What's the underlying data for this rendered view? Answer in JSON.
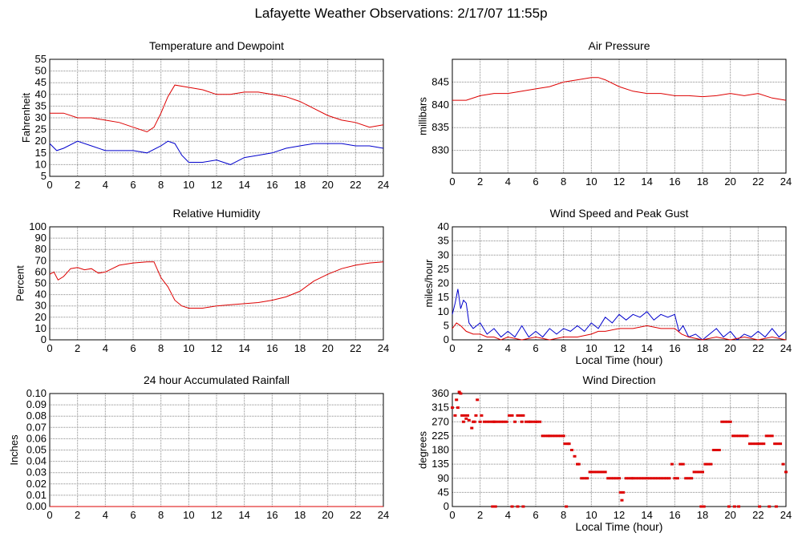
{
  "page_title": "Lafayette Weather Observations: 2/17/07 11:55p",
  "chart_data": [
    {
      "id": "temp",
      "type": "line",
      "title": "Temperature and Dewpoint",
      "xlabel": "",
      "ylabel": "Fahrenheit",
      "xlim": [
        0,
        24
      ],
      "ylim": [
        5,
        55
      ],
      "xticks": [
        "0",
        "2",
        "4",
        "6",
        "8",
        "10",
        "12",
        "14",
        "16",
        "18",
        "20",
        "22",
        "24"
      ],
      "yticks": [
        "5",
        "10",
        "15",
        "20",
        "25",
        "30",
        "35",
        "40",
        "45",
        "50",
        "55"
      ],
      "series": [
        {
          "color": "#dd0000",
          "x": [
            0,
            1,
            2,
            3,
            4,
            5,
            6,
            7,
            7.5,
            8,
            8.5,
            9,
            10,
            11,
            12,
            13,
            14,
            15,
            16,
            17,
            18,
            19,
            20,
            21,
            22,
            23,
            24
          ],
          "y": [
            32,
            32,
            30,
            30,
            29,
            28,
            26,
            24,
            26,
            32,
            39,
            44,
            43,
            42,
            40,
            40,
            41,
            41,
            40,
            39,
            37,
            34,
            31,
            29,
            28,
            26,
            27
          ]
        },
        {
          "color": "#0000cc",
          "x": [
            0,
            0.5,
            1,
            2,
            3,
            4,
            5,
            6,
            7,
            8,
            8.5,
            9,
            9.5,
            10,
            11,
            12,
            13,
            14,
            15,
            16,
            17,
            18,
            19,
            20,
            21,
            22,
            23,
            24
          ],
          "y": [
            19,
            16,
            17,
            20,
            18,
            16,
            16,
            16,
            15,
            18,
            20,
            19,
            14,
            11,
            11,
            12,
            10,
            13,
            14,
            15,
            17,
            18,
            19,
            19,
            19,
            18,
            18,
            17
          ]
        }
      ]
    },
    {
      "id": "pressure",
      "type": "line",
      "title": "Air Pressure",
      "xlabel": "",
      "ylabel": "millibars",
      "xlim": [
        0,
        24
      ],
      "ylim": [
        825,
        850
      ],
      "xticks": [
        "0",
        "2",
        "4",
        "6",
        "8",
        "10",
        "12",
        "14",
        "16",
        "18",
        "20",
        "22",
        "24"
      ],
      "yticks": [
        "830",
        "835",
        "840",
        "845"
      ],
      "series": [
        {
          "color": "#dd0000",
          "x": [
            0,
            1,
            2,
            3,
            4,
            5,
            6,
            7,
            8,
            9,
            10,
            10.5,
            11,
            12,
            13,
            14,
            15,
            16,
            17,
            18,
            19,
            20,
            21,
            22,
            23,
            24
          ],
          "y": [
            841,
            841,
            842,
            842.5,
            842.5,
            843,
            843.5,
            844,
            845,
            845.5,
            846,
            846,
            845.5,
            844,
            843,
            842.5,
            842.5,
            842,
            842,
            841.8,
            842,
            842.5,
            842,
            842.5,
            841.5,
            841
          ]
        }
      ]
    },
    {
      "id": "humidity",
      "type": "line",
      "title": "Relative Humidity",
      "xlabel": "",
      "ylabel": "Percent",
      "xlim": [
        0,
        24
      ],
      "ylim": [
        0,
        100
      ],
      "xticks": [
        "0",
        "2",
        "4",
        "6",
        "8",
        "10",
        "12",
        "14",
        "16",
        "18",
        "20",
        "22",
        "24"
      ],
      "yticks": [
        "0",
        "10",
        "20",
        "30",
        "40",
        "50",
        "60",
        "70",
        "80",
        "90",
        "100"
      ],
      "series": [
        {
          "color": "#dd0000",
          "x": [
            0,
            0.3,
            0.6,
            1,
            1.5,
            2,
            2.5,
            3,
            3.5,
            4,
            5,
            6,
            7,
            7.5,
            8,
            8.5,
            9,
            9.5,
            10,
            11,
            12,
            13,
            14,
            15,
            16,
            17,
            18,
            19,
            20,
            21,
            22,
            23,
            24
          ],
          "y": [
            58,
            60,
            53,
            56,
            63,
            64,
            62,
            63,
            59,
            60,
            66,
            68,
            69,
            69,
            55,
            47,
            35,
            30,
            28,
            28,
            30,
            31,
            32,
            33,
            35,
            38,
            43,
            52,
            58,
            63,
            66,
            68,
            69
          ]
        }
      ]
    },
    {
      "id": "wind",
      "type": "line",
      "title": "Wind Speed and Peak Gust",
      "xlabel": "Local Time (hour)",
      "ylabel": "miles/hour",
      "xlim": [
        0,
        24
      ],
      "ylim": [
        0,
        40
      ],
      "xticks": [
        "0",
        "2",
        "4",
        "6",
        "8",
        "10",
        "12",
        "14",
        "16",
        "18",
        "20",
        "22",
        "24"
      ],
      "yticks": [
        "0",
        "5",
        "10",
        "15",
        "20",
        "25",
        "30",
        "35",
        "40"
      ],
      "series": [
        {
          "color": "#0000cc",
          "x": [
            0,
            0.2,
            0.4,
            0.6,
            0.8,
            1,
            1.2,
            1.5,
            2,
            2.5,
            3,
            3.5,
            4,
            4.5,
            5,
            5.5,
            6,
            6.5,
            7,
            7.5,
            8,
            8.5,
            9,
            9.5,
            10,
            10.5,
            11,
            11.5,
            12,
            12.5,
            13,
            13.5,
            14,
            14.5,
            15,
            15.5,
            16,
            16.3,
            16.6,
            17,
            17.5,
            18,
            18.5,
            19,
            19.5,
            20,
            20.5,
            21,
            21.5,
            22,
            22.5,
            23,
            23.5,
            24
          ],
          "y": [
            9,
            13,
            18,
            11,
            14,
            13,
            6,
            4,
            6,
            2,
            4,
            1,
            3,
            1,
            5,
            1,
            3,
            1,
            4,
            2,
            4,
            3,
            5,
            3,
            6,
            4,
            8,
            6,
            9,
            7,
            9,
            8,
            10,
            7,
            9,
            8,
            9,
            3,
            5,
            1,
            2,
            0,
            2,
            4,
            1,
            3,
            0,
            2,
            1,
            3,
            1,
            4,
            1,
            3
          ]
        },
        {
          "color": "#dd0000",
          "x": [
            0,
            0.3,
            0.6,
            1,
            1.5,
            2,
            2.5,
            3,
            3.5,
            4,
            5,
            6,
            7,
            8,
            9,
            10,
            10.5,
            11,
            12,
            13,
            14,
            15,
            16,
            16.5,
            17,
            18,
            19,
            20,
            21,
            22,
            23,
            24
          ],
          "y": [
            4,
            6,
            5,
            3,
            2,
            2,
            1,
            1,
            0,
            1,
            0,
            1,
            0,
            1,
            1,
            2,
            3,
            3,
            4,
            4,
            5,
            4,
            4,
            2,
            1,
            0,
            1,
            0,
            1,
            0,
            1,
            0
          ]
        }
      ]
    },
    {
      "id": "rain",
      "type": "line",
      "title": "24 hour Accumulated Rainfall",
      "xlabel": "",
      "ylabel": "Inches",
      "xlim": [
        0,
        24
      ],
      "ylim": [
        0,
        0.1
      ],
      "xticks": [
        "0",
        "2",
        "4",
        "6",
        "8",
        "10",
        "12",
        "14",
        "16",
        "18",
        "20",
        "22",
        "24"
      ],
      "yticks": [
        "0.00",
        "0.01",
        "0.02",
        "0.03",
        "0.04",
        "0.05",
        "0.06",
        "0.07",
        "0.08",
        "0.09",
        "0.10"
      ],
      "series": [
        {
          "color": "#dd0000",
          "x": [
            0,
            24
          ],
          "y": [
            0,
            0
          ]
        }
      ]
    },
    {
      "id": "direction",
      "type": "scatter",
      "title": "Wind Direction",
      "xlabel": "Local Time (hour)",
      "ylabel": "degrees",
      "xlim": [
        0,
        24
      ],
      "ylim": [
        0,
        360
      ],
      "xticks": [
        "0",
        "2",
        "4",
        "6",
        "8",
        "10",
        "12",
        "14",
        "16",
        "18",
        "20",
        "22",
        "24"
      ],
      "yticks": [
        "0",
        "45",
        "90",
        "135",
        "180",
        "225",
        "270",
        "315",
        "360"
      ],
      "series": [
        {
          "color": "#dd0000",
          "x": [
            0,
            0.2,
            0.3,
            0.4,
            0.5,
            0.6,
            0.7,
            0.8,
            0.9,
            1,
            1.1,
            1.2,
            1.4,
            1.5,
            1.6,
            1.7,
            1.8,
            2,
            2.1,
            2.3,
            2.5,
            2.7,
            2.9,
            3,
            3.1,
            3.3,
            3.5,
            3.7,
            3.9,
            4.1,
            4.3,
            4.5,
            4.7,
            4.9,
            5,
            5.1,
            5.3,
            5.5,
            5.6,
            5.8,
            6,
            6.1,
            6.3,
            6.5,
            6.7,
            6.9,
            7,
            7.2,
            7.4,
            7.6,
            7.8,
            8,
            8.1,
            8.3,
            8.4,
            8.6,
            8.8,
            9,
            9.1,
            9.3,
            9.5,
            9.7,
            9.9,
            10,
            10.2,
            10.4,
            10.6,
            10.8,
            11,
            11.2,
            11.4,
            11.6,
            11.8,
            12,
            12.1,
            12.2,
            12.3,
            12.5,
            12.7,
            12.9,
            13,
            13.2,
            13.4,
            13.6,
            13.8,
            14,
            14.2,
            14.4,
            14.6,
            14.8,
            15,
            15.2,
            15.4,
            15.6,
            15.8,
            16,
            16.2,
            16.4,
            16.6,
            16.8,
            17,
            17.2,
            17.4,
            17.6,
            17.8,
            18,
            18.2,
            18.4,
            18.6,
            18.8,
            19,
            19.2,
            19.4,
            19.6,
            19.8,
            20,
            20.2,
            20.4,
            20.6,
            20.8,
            21,
            21.2,
            21.4,
            21.6,
            21.8,
            22,
            22.2,
            22.4,
            22.6,
            22.8,
            23,
            23.2,
            23.4,
            23.6,
            23.8,
            24,
            2.9,
            3.1,
            4.3,
            4.7,
            5.1,
            8.2,
            17.9,
            18.1,
            19.9,
            20.3,
            20.6,
            22.1,
            22.8,
            23.3
          ],
          "y": [
            315,
            290,
            340,
            315,
            365,
            360,
            290,
            270,
            290,
            280,
            290,
            275,
            250,
            270,
            270,
            290,
            340,
            270,
            290,
            270,
            270,
            270,
            270,
            270,
            270,
            270,
            270,
            270,
            270,
            290,
            290,
            270,
            290,
            290,
            270,
            290,
            270,
            270,
            270,
            270,
            270,
            270,
            270,
            225,
            225,
            225,
            225,
            225,
            225,
            225,
            225,
            225,
            200,
            200,
            200,
            180,
            160,
            135,
            135,
            90,
            90,
            90,
            110,
            110,
            110,
            110,
            110,
            110,
            110,
            90,
            90,
            90,
            90,
            90,
            45,
            20,
            45,
            90,
            90,
            90,
            90,
            90,
            90,
            90,
            90,
            90,
            90,
            90,
            90,
            90,
            90,
            90,
            90,
            90,
            135,
            90,
            90,
            135,
            135,
            90,
            90,
            90,
            110,
            110,
            110,
            110,
            135,
            135,
            135,
            180,
            180,
            180,
            270,
            270,
            270,
            270,
            225,
            225,
            225,
            225,
            225,
            225,
            200,
            200,
            200,
            200,
            200,
            200,
            225,
            225,
            225,
            200,
            200,
            200,
            135,
            110,
            0,
            0,
            0,
            0,
            0,
            0,
            0,
            0,
            0,
            0,
            0,
            0,
            0,
            0
          ]
        }
      ]
    }
  ]
}
